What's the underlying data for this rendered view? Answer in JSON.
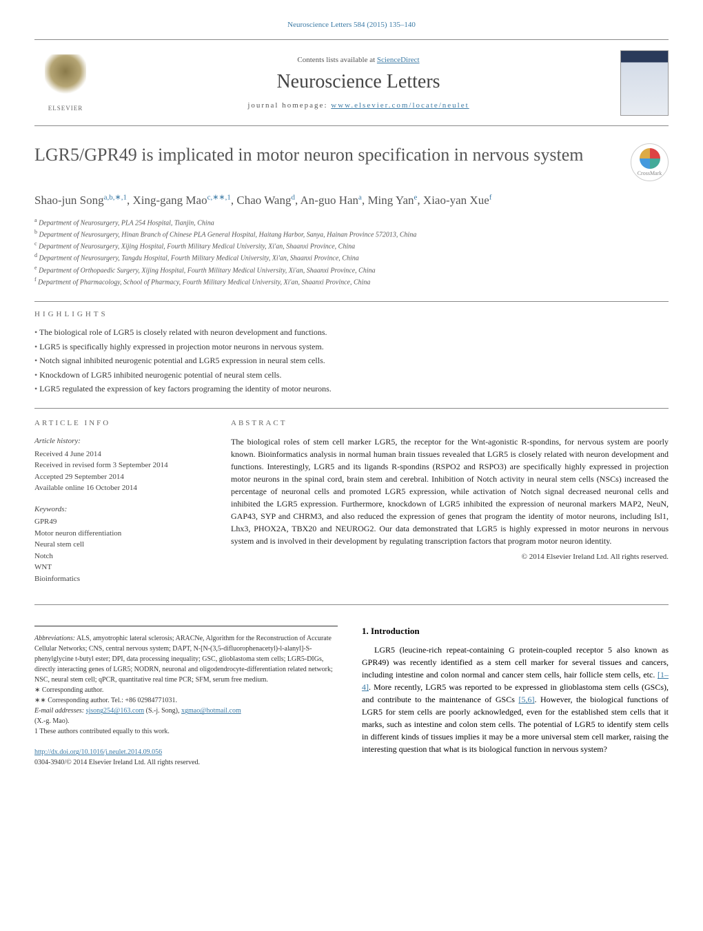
{
  "header": {
    "citation": "Neuroscience Letters 584 (2015) 135–140",
    "contents_prefix": "Contents lists available at ",
    "contents_link": "ScienceDirect",
    "journal_title": "Neuroscience Letters",
    "homepage_prefix": "journal homepage: ",
    "homepage_url": "www.elsevier.com/locate/neulet",
    "publisher": "ELSEVIER",
    "crossmark_label": "CrossMark"
  },
  "colors": {
    "link": "#3b7aa5",
    "text_muted": "#555555",
    "rule": "#888888"
  },
  "article": {
    "title": "LGR5/GPR49 is implicated in motor neuron specification in nervous system",
    "authors_html": "Shao-jun Song<sup>a,b,∗,1</sup>, Xing-gang Mao<sup>c,∗∗,1</sup>, Chao Wang<sup>d</sup>, An-guo Han<sup>a</sup>, Ming Yan<sup>e</sup>, Xiao-yan Xue<sup>f</sup>",
    "affiliations": [
      "a Department of Neurosurgery, PLA 254 Hospital, Tianjin, China",
      "b Department of Neurosurgery, Hinan Branch of Chinese PLA General Hospital, Haitang Harbor, Sanya, Hainan Province 572013, China",
      "c Department of Neurosurgery, Xijing Hospital, Fourth Military Medical University, Xi'an, Shaanxi Province, China",
      "d Department of Neurosurgery, Tangdu Hospital, Fourth Military Medical University, Xi'an, Shaanxi Province, China",
      "e Department of Orthopaedic Surgery, Xijing Hospital, Fourth Military Medical University, Xi'an, Shaanxi Province, China",
      "f Department of Pharmacology, School of Pharmacy, Fourth Military Medical University, Xi'an, Shaanxi Province, China"
    ]
  },
  "highlights": {
    "heading": "HIGHLIGHTS",
    "items": [
      "The biological role of LGR5 is closely related with neuron development and functions.",
      "LGR5 is specifically highly expressed in projection motor neurons in nervous system.",
      "Notch signal inhibited neurogenic potential and LGR5 expression in neural stem cells.",
      "Knockdown of LGR5 inhibited neurogenic potential of neural stem cells.",
      "LGR5 regulated the expression of key factors programing the identity of motor neurons."
    ]
  },
  "article_info": {
    "heading": "ARTICLE INFO",
    "history_label": "Article history:",
    "history": [
      "Received 4 June 2014",
      "Received in revised form 3 September 2014",
      "Accepted 29 September 2014",
      "Available online 16 October 2014"
    ],
    "keywords_label": "Keywords:",
    "keywords": [
      "GPR49",
      "Motor neuron differentiation",
      "Neural stem cell",
      "Notch",
      "WNT",
      "Bioinformatics"
    ]
  },
  "abstract": {
    "heading": "ABSTRACT",
    "text": "The biological roles of stem cell marker LGR5, the receptor for the Wnt-agonistic R-spondins, for nervous system are poorly known. Bioinformatics analysis in normal human brain tissues revealed that LGR5 is closely related with neuron development and functions. Interestingly, LGR5 and its ligands R-spondins (RSPO2 and RSPO3) are specifically highly expressed in projection motor neurons in the spinal cord, brain stem and cerebral. Inhibition of Notch activity in neural stem cells (NSCs) increased the percentage of neuronal cells and promoted LGR5 expression, while activation of Notch signal decreased neuronal cells and inhibited the LGR5 expression. Furthermore, knockdown of LGR5 inhibited the expression of neuronal markers MAP2, NeuN, GAP43, SYP and CHRM3, and also reduced the expression of genes that program the identity of motor neurons, including Isl1, Lhx3, PHOX2A, TBX20 and NEUROG2. Our data demonstrated that LGR5 is highly expressed in motor neurons in nervous system and is involved in their development by regulating transcription factors that program motor neuron identity.",
    "copyright": "© 2014 Elsevier Ireland Ltd. All rights reserved."
  },
  "intro": {
    "heading": "1. Introduction",
    "paragraph": "LGR5 (leucine-rich repeat-containing G protein-coupled receptor 5 also known as GPR49) was recently identified as a stem cell marker for several tissues and cancers, including intestine and colon normal and cancer stem cells, hair follicle stem cells, etc. [1–4]. More recently, LGR5 was reported to be expressed in glioblastoma stem cells (GSCs), and contribute to the maintenance of GSCs [5,6]. However, the biological functions of LGR5 for stem cells are poorly acknowledged, even for the established stem cells that it marks, such as intestine and colon stem cells. The potential of LGR5 to identify stem cells in different kinds of tissues implies it may be a more universal stem cell marker, raising the interesting question that what is its biological function in nervous system?"
  },
  "footnotes": {
    "abbreviations_label": "Abbreviations:",
    "abbreviations": "ALS, amyotrophic lateral sclerosis; ARACNe, Algorithm for the Reconstruction of Accurate Cellular Networks; CNS, central nervous system; DAPT, N-[N-(3,5-difluorophenacetyl)-l-alanyl]-S- phenylglycine t-butyl ester; DPI, data processing inequality; GSC, glioblastoma stem cells; LGR5-DIGs, directly interacting genes of LGR5; NODRN, neuronal and oligodendrocyte-differentiation related network; NSC, neural stem cell; qPCR, quantitative real time PCR; SFM, serum free medium.",
    "corr1": "∗ Corresponding author.",
    "corr2": "∗∗ Corresponding author. Tel.: +86 02984771031.",
    "email_label": "E-mail addresses:",
    "email1": "sjsong254@163.com",
    "email1_name": "(S.-j. Song),",
    "email2": "xgmao@hotmail.com",
    "email2_name": "(X.-g. Mao).",
    "equal": "1 These authors contributed equally to this work.",
    "doi_url": "http://dx.doi.org/10.1016/j.neulet.2014.09.056",
    "issn": "0304-3940/© 2014 Elsevier Ireland Ltd. All rights reserved."
  }
}
